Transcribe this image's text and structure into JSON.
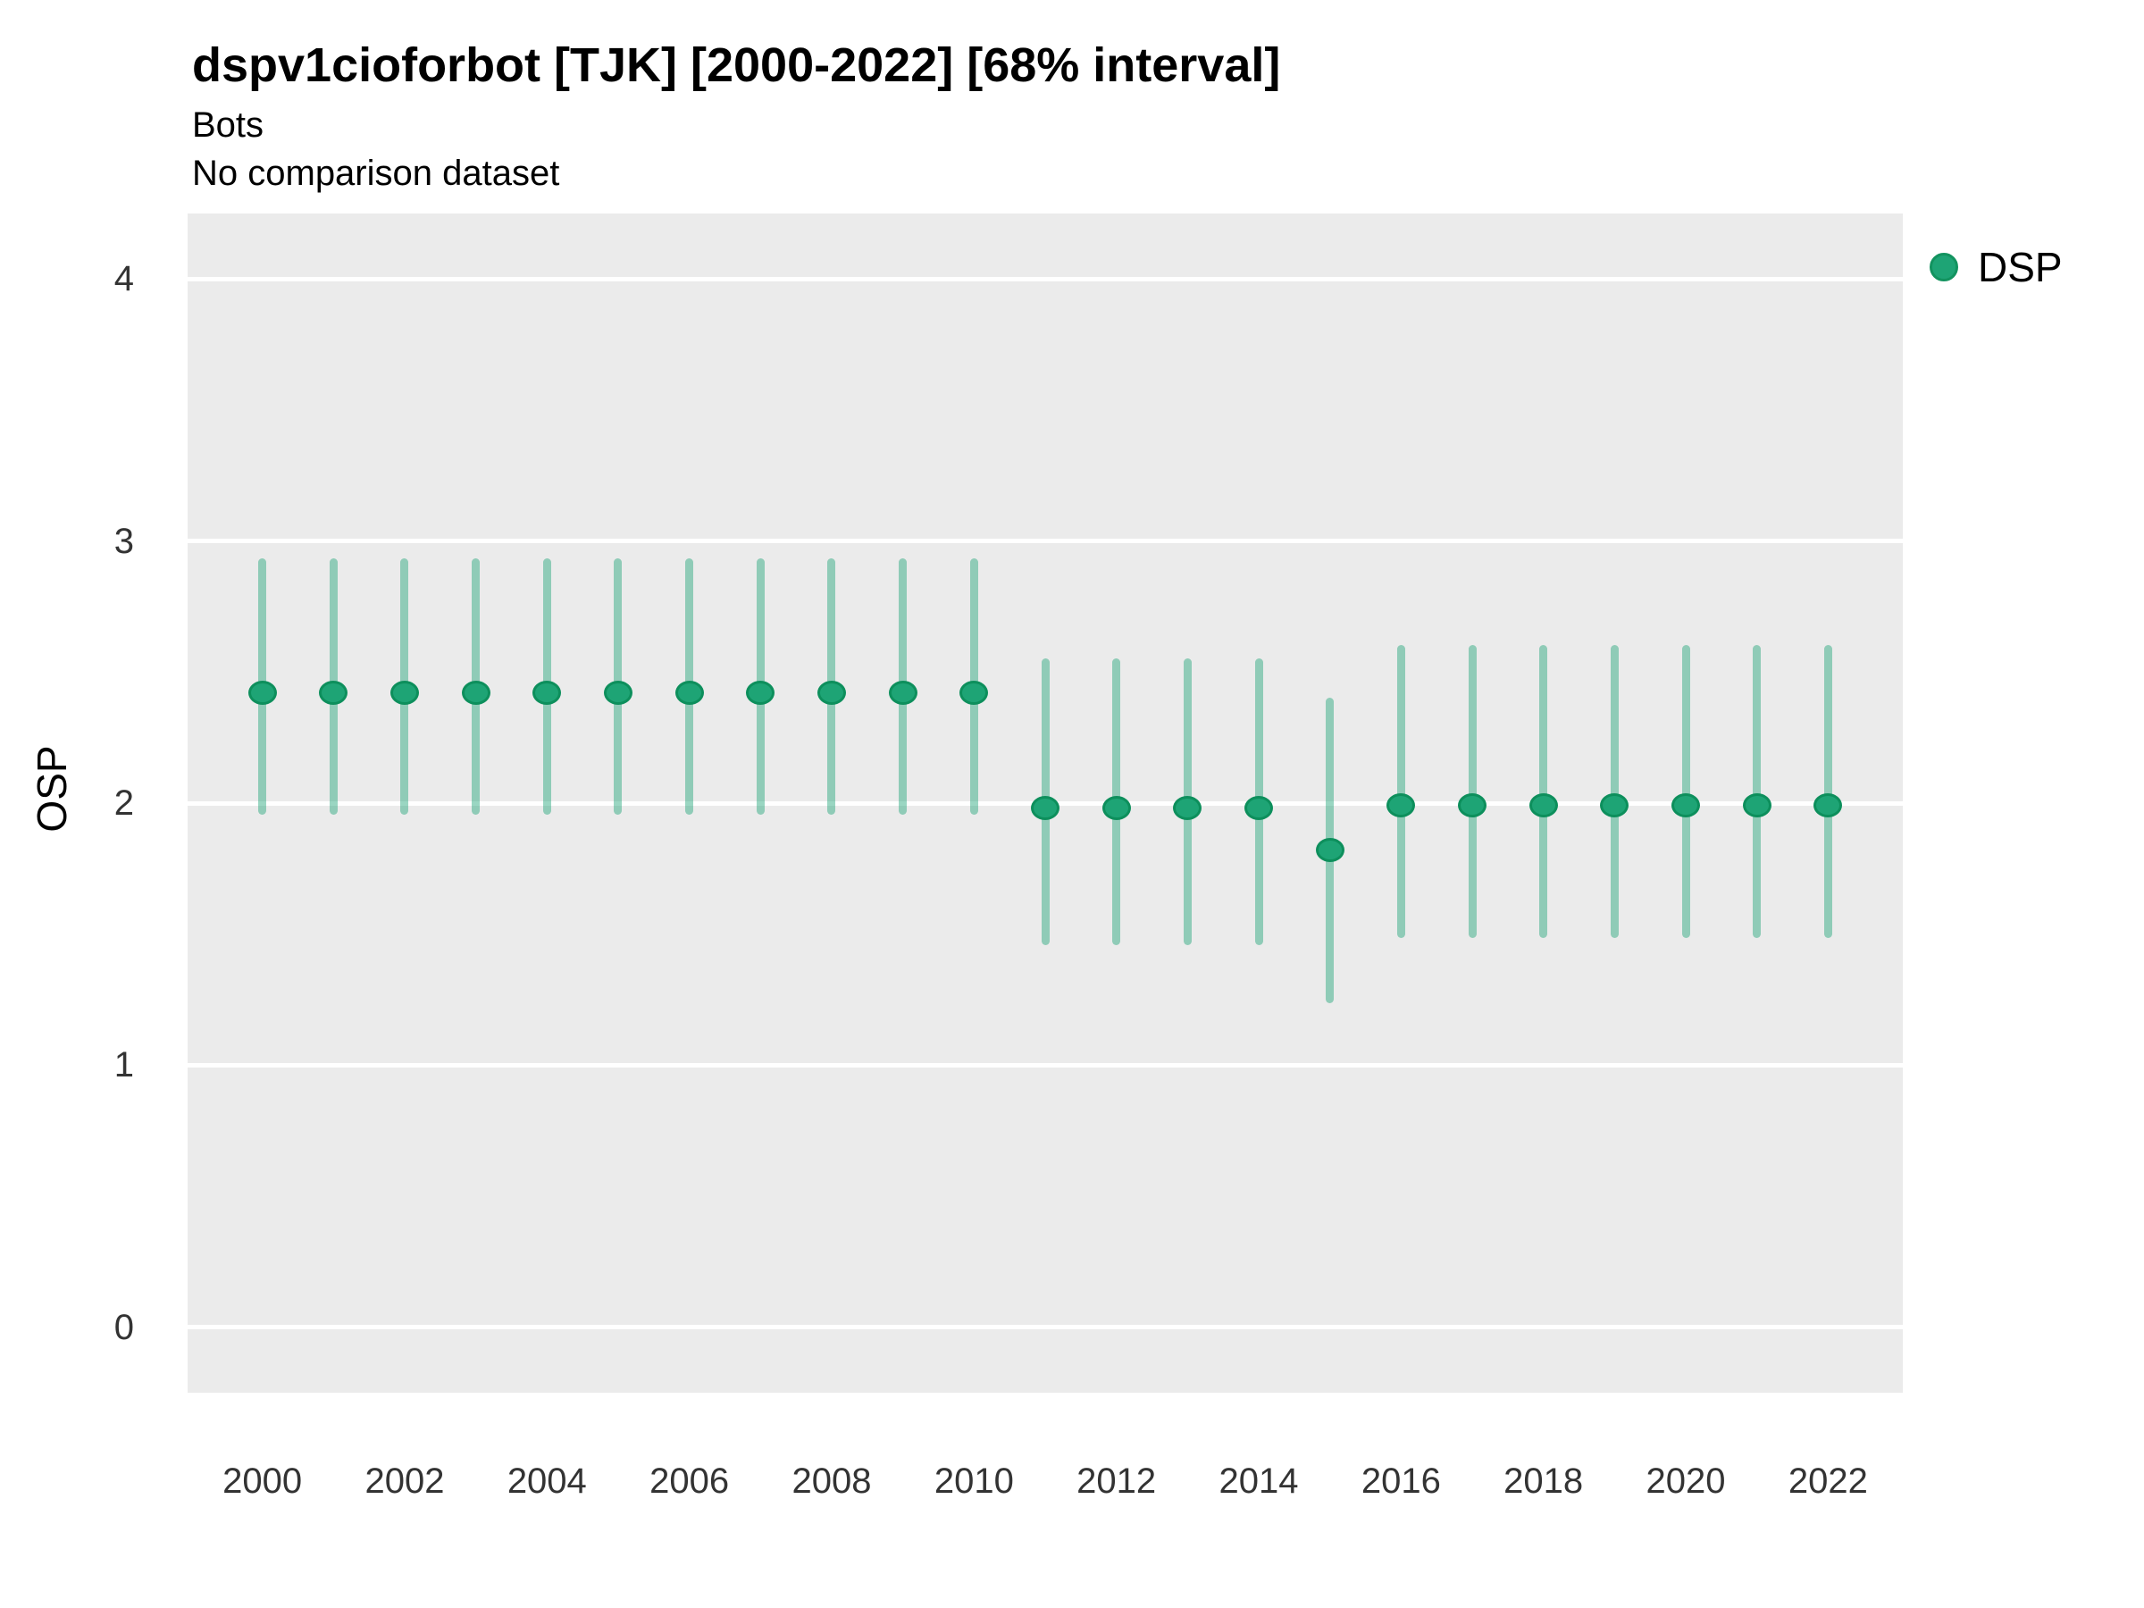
{
  "header": {
    "title": "dspv1cioforbot [TJK] [2000-2022] [68% interval]",
    "subtitle": "Bots",
    "comparison_note": "No comparison dataset"
  },
  "legend": {
    "position": "right-top",
    "items": [
      {
        "label": "DSP",
        "color": "#1EA475",
        "border_color": "#12935F",
        "marker": "circle"
      }
    ]
  },
  "colors": {
    "panel_background": "#EBEBEB",
    "gridline": "#FFFFFF",
    "point_fill": "#1EA475",
    "point_border": "#0D8F5C",
    "error_bar": "rgba(31,165,119,0.45)",
    "tick_text": "#333333",
    "title_text": "#000000"
  },
  "chart_data": {
    "type": "scatter",
    "title": "dspv1cioforbot [TJK] [2000-2022] [68% interval]",
    "subtitle": "Bots",
    "note": "No comparison dataset",
    "interval": "68%",
    "xlabel": "",
    "ylabel": "OSP",
    "grid": "major-horizontal-only",
    "legend_position": "right",
    "x_ticks": [
      2000,
      2002,
      2004,
      2006,
      2008,
      2010,
      2012,
      2014,
      2016,
      2018,
      2020,
      2022
    ],
    "y_ticks": [
      0,
      1,
      2,
      3,
      4
    ],
    "xlim": [
      1998.95,
      2023.05
    ],
    "ylim": [
      -0.25,
      4.25
    ],
    "series": [
      {
        "name": "DSP",
        "points": [
          {
            "x": 2000,
            "y": 2.42,
            "lo": 1.97,
            "hi": 2.92
          },
          {
            "x": 2001,
            "y": 2.42,
            "lo": 1.97,
            "hi": 2.92
          },
          {
            "x": 2002,
            "y": 2.42,
            "lo": 1.97,
            "hi": 2.92
          },
          {
            "x": 2003,
            "y": 2.42,
            "lo": 1.97,
            "hi": 2.92
          },
          {
            "x": 2004,
            "y": 2.42,
            "lo": 1.97,
            "hi": 2.92
          },
          {
            "x": 2005,
            "y": 2.42,
            "lo": 1.97,
            "hi": 2.92
          },
          {
            "x": 2006,
            "y": 2.42,
            "lo": 1.97,
            "hi": 2.92
          },
          {
            "x": 2007,
            "y": 2.42,
            "lo": 1.97,
            "hi": 2.92
          },
          {
            "x": 2008,
            "y": 2.42,
            "lo": 1.97,
            "hi": 2.92
          },
          {
            "x": 2009,
            "y": 2.42,
            "lo": 1.97,
            "hi": 2.92
          },
          {
            "x": 2010,
            "y": 2.42,
            "lo": 1.97,
            "hi": 2.92
          },
          {
            "x": 2011,
            "y": 1.98,
            "lo": 1.47,
            "hi": 2.54
          },
          {
            "x": 2012,
            "y": 1.98,
            "lo": 1.47,
            "hi": 2.54
          },
          {
            "x": 2013,
            "y": 1.98,
            "lo": 1.47,
            "hi": 2.54
          },
          {
            "x": 2014,
            "y": 1.98,
            "lo": 1.47,
            "hi": 2.54
          },
          {
            "x": 2015,
            "y": 1.82,
            "lo": 1.25,
            "hi": 2.39
          },
          {
            "x": 2016,
            "y": 1.99,
            "lo": 1.5,
            "hi": 2.59
          },
          {
            "x": 2017,
            "y": 1.99,
            "lo": 1.5,
            "hi": 2.59
          },
          {
            "x": 2018,
            "y": 1.99,
            "lo": 1.5,
            "hi": 2.59
          },
          {
            "x": 2019,
            "y": 1.99,
            "lo": 1.5,
            "hi": 2.59
          },
          {
            "x": 2020,
            "y": 1.99,
            "lo": 1.5,
            "hi": 2.59
          },
          {
            "x": 2021,
            "y": 1.99,
            "lo": 1.5,
            "hi": 2.59
          },
          {
            "x": 2022,
            "y": 1.99,
            "lo": 1.5,
            "hi": 2.59
          }
        ]
      }
    ]
  }
}
